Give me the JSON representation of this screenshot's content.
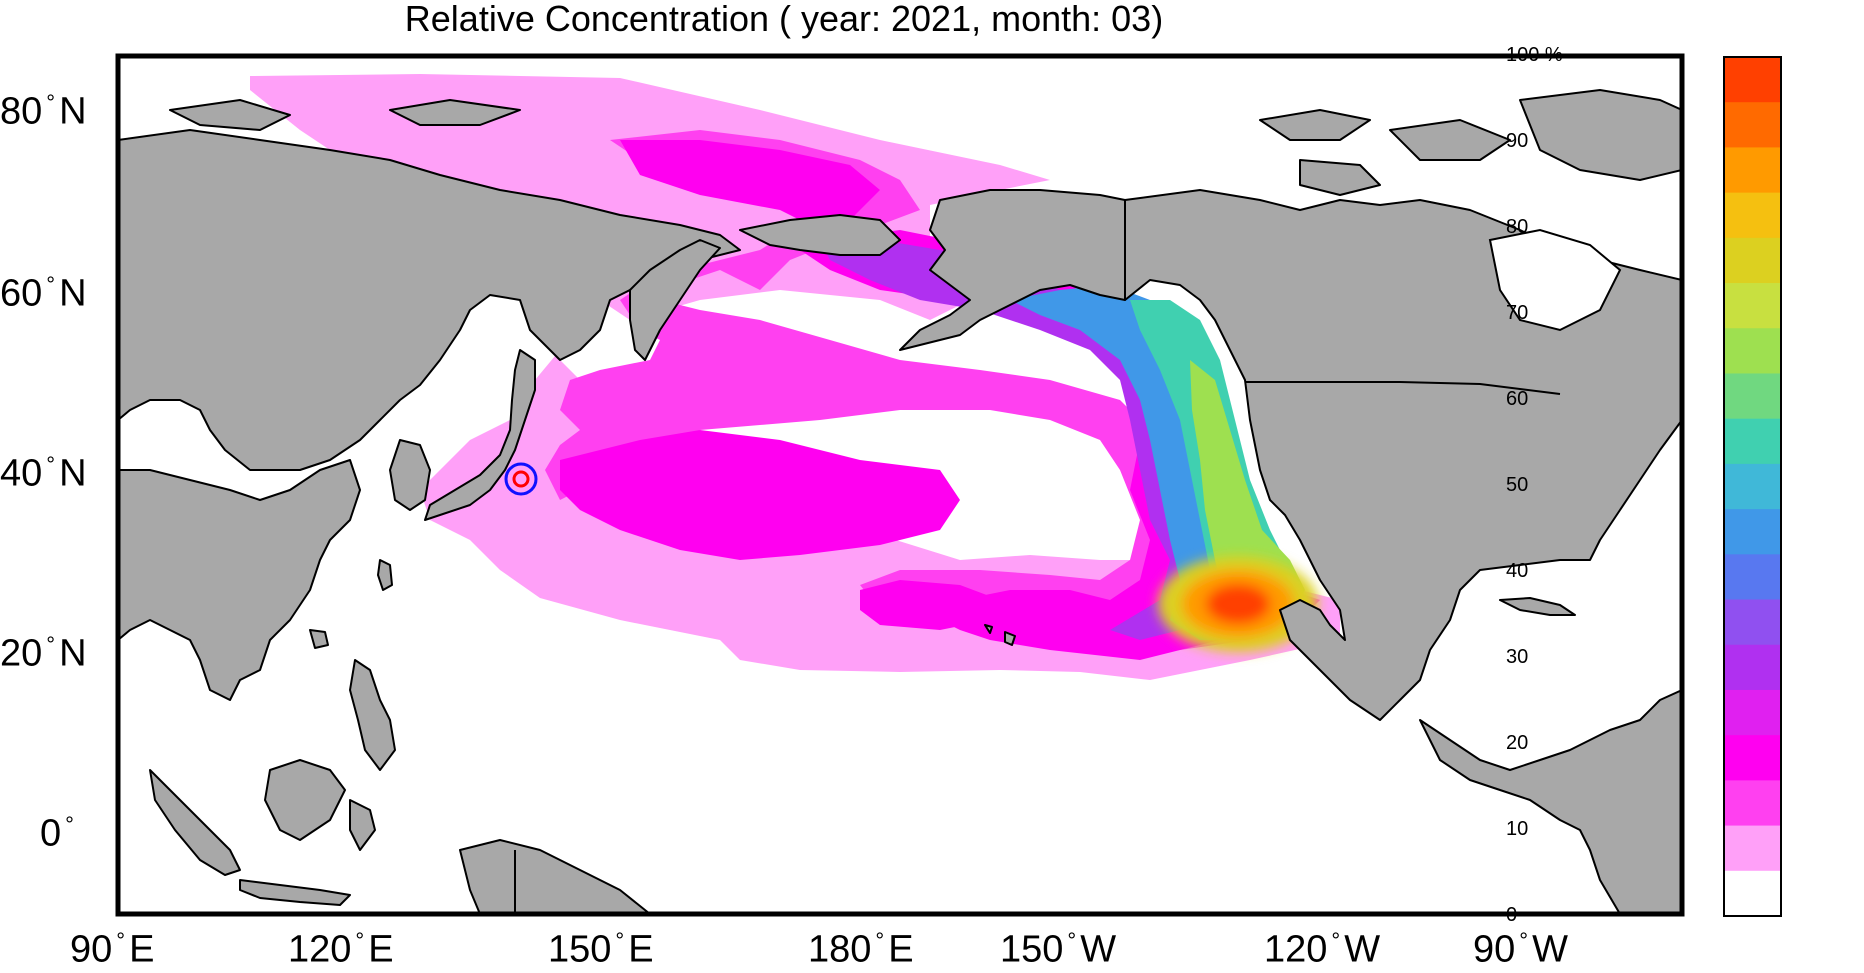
{
  "title": "Relative Concentration ( year: 2021, month: 03)",
  "latitude_labels": [
    {
      "value": "80",
      "hemi": "N"
    },
    {
      "value": "60",
      "hemi": "N"
    },
    {
      "value": "40",
      "hemi": "N"
    },
    {
      "value": "20",
      "hemi": "N"
    },
    {
      "value": "0",
      "hemi": ""
    }
  ],
  "longitude_labels": [
    {
      "value": "90",
      "hemi": "E"
    },
    {
      "value": "120",
      "hemi": "E"
    },
    {
      "value": "150",
      "hemi": "E"
    },
    {
      "value": "180",
      "hemi": "E"
    },
    {
      "value": "150",
      "hemi": "W"
    },
    {
      "value": "120",
      "hemi": "W"
    },
    {
      "value": "90",
      "hemi": "W"
    }
  ],
  "colorbar": {
    "labels": [
      "100 %",
      "90",
      "80",
      "70",
      "60",
      "50",
      "40",
      "30",
      "20",
      "10",
      "0"
    ],
    "colors": [
      "#ff4000",
      "#ff6a00",
      "#ff9a00",
      "#f5c010",
      "#dcd020",
      "#c8e040",
      "#9ee050",
      "#70d880",
      "#40d0b0",
      "#40b8d8",
      "#4098e8",
      "#5878f0",
      "#9050f0",
      "#b030f0",
      "#e020f0",
      "#ff00f0",
      "#ff40f0",
      "#ffa0f8",
      "#ffffff"
    ]
  },
  "colors": {
    "land": "#a8a8a8",
    "ocean": "#ffffff",
    "source_marker_outer": "#1010ff",
    "source_marker_inner": "#ff0000"
  }
}
